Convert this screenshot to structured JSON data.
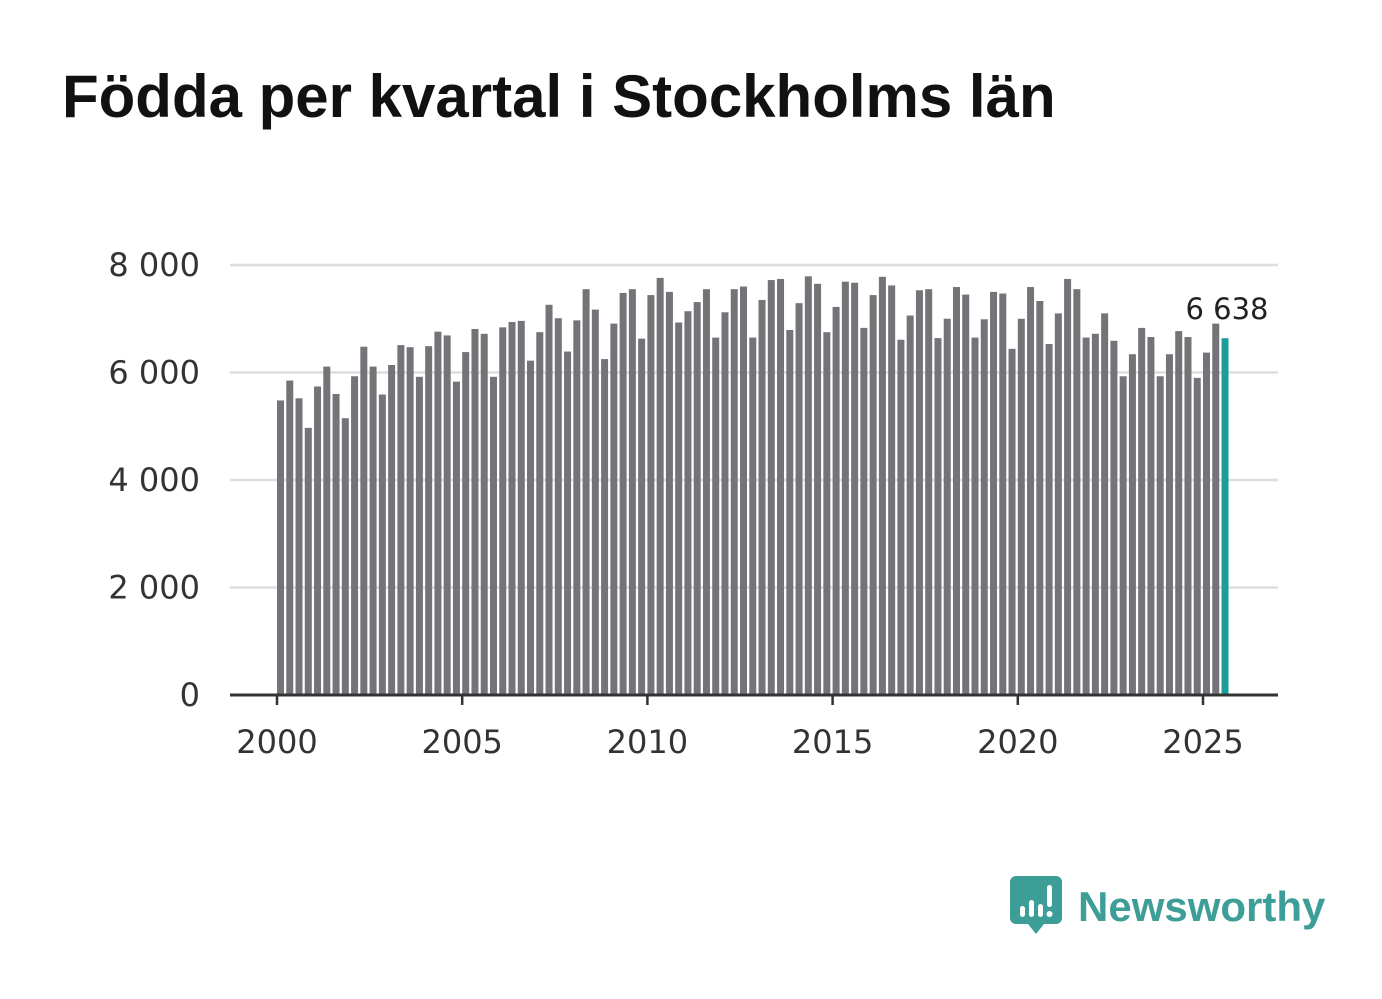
{
  "colors": {
    "bar": "#747378",
    "highlight": "#1a9e97",
    "grid": "#dddddd",
    "axis": "#333333",
    "brand": "#3d9e98"
  },
  "chart_data": {
    "type": "bar",
    "title": "Födda per kvartal i Stockholms län",
    "xlabel": "",
    "ylabel": "",
    "ylim": [
      0,
      8000
    ],
    "y_ticks": [
      0,
      2000,
      4000,
      6000,
      8000
    ],
    "y_tick_labels": [
      "0",
      "2 000",
      "4 000",
      "6 000",
      "8 000"
    ],
    "x_ticks": [
      2000,
      2005,
      2010,
      2015,
      2020,
      2025
    ],
    "x_tick_labels": [
      "2000",
      "2005",
      "2010",
      "2015",
      "2020",
      "2025"
    ],
    "grid": true,
    "start_year": 2000,
    "periods_per_year": 4,
    "series": [
      {
        "name": "Födda",
        "values": [
          5480,
          5850,
          5520,
          4970,
          5740,
          6110,
          5600,
          5150,
          5930,
          6480,
          6110,
          5590,
          6140,
          6510,
          6470,
          5920,
          6490,
          6760,
          6690,
          5830,
          6380,
          6810,
          6720,
          5920,
          6840,
          6940,
          6960,
          6220,
          6750,
          7260,
          7010,
          6390,
          6970,
          7550,
          7170,
          6250,
          6910,
          7480,
          7550,
          6630,
          7440,
          7760,
          7500,
          6930,
          7140,
          7310,
          7550,
          6650,
          7120,
          7550,
          7600,
          6650,
          7350,
          7720,
          7740,
          6790,
          7290,
          7790,
          7650,
          6750,
          7220,
          7690,
          7670,
          6830,
          7440,
          7780,
          7620,
          6610,
          7060,
          7530,
          7550,
          6640,
          7000,
          7590,
          7450,
          6650,
          6990,
          7500,
          7470,
          6440,
          7000,
          7590,
          7330,
          6530,
          7100,
          7740,
          7550,
          6650,
          6720,
          7100,
          6590,
          5930,
          6340,
          6830,
          6660,
          5930,
          6340,
          6770,
          6660,
          5900,
          6370,
          6910,
          6638
        ]
      }
    ],
    "highlight_last": true,
    "annotation": {
      "text": "6 638",
      "value": 6638
    }
  },
  "brand": {
    "name": "Newsworthy"
  }
}
